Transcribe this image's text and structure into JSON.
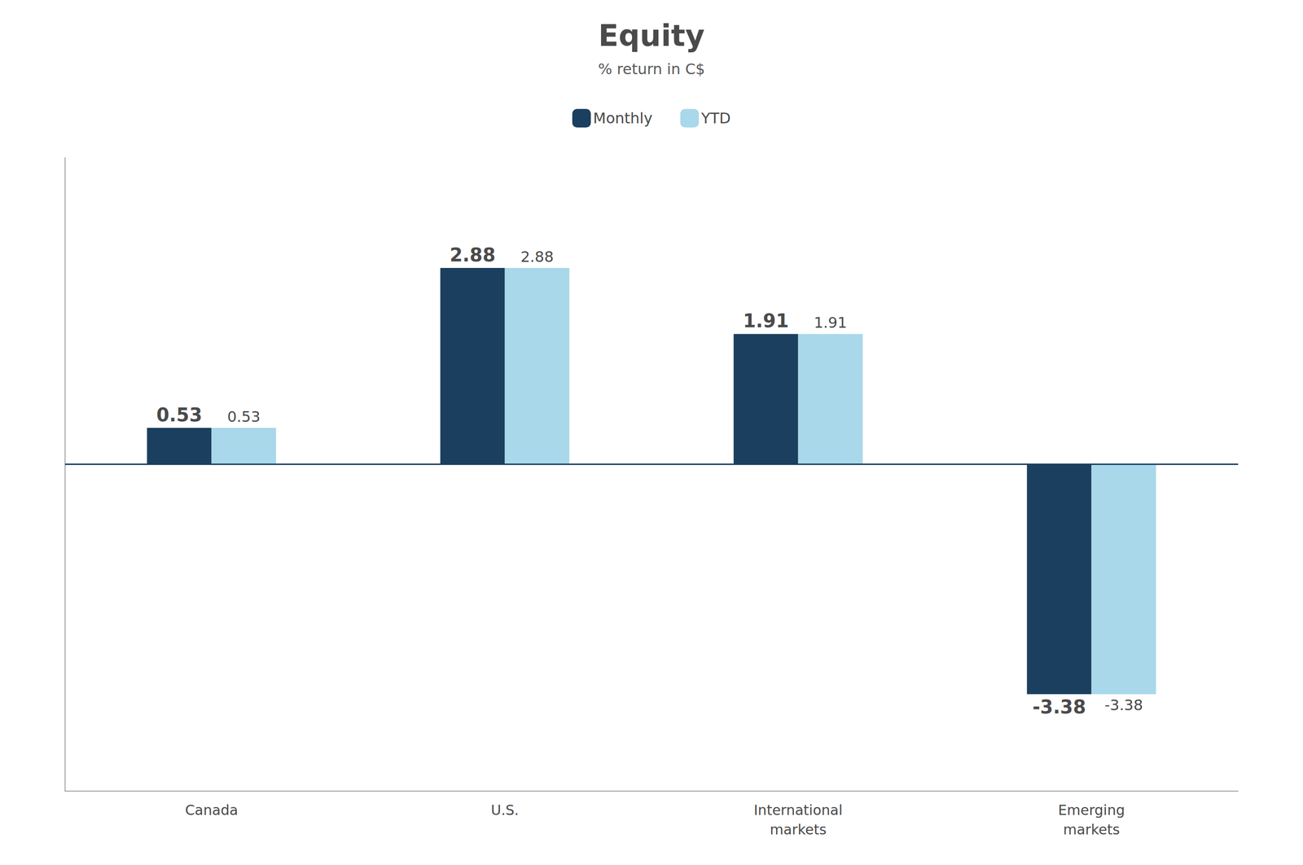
{
  "chart_data": {
    "type": "bar",
    "title": "Equity",
    "subtitle": "% return in C$",
    "categories": [
      "Canada",
      "U.S.",
      "International\nmarkets",
      "Emerging\nmarkets"
    ],
    "series": [
      {
        "name": "Monthly",
        "color": "#1b3f5e",
        "values": [
          0.53,
          2.88,
          1.91,
          -3.38
        ]
      },
      {
        "name": "YTD",
        "color": "#a8d8ea",
        "values": [
          0.53,
          2.88,
          1.91,
          -3.38
        ]
      }
    ],
    "ylim": [
      -4.8,
      4.5
    ],
    "grid": false,
    "legend": "top",
    "data_labels": true,
    "tick_labels": "x"
  }
}
